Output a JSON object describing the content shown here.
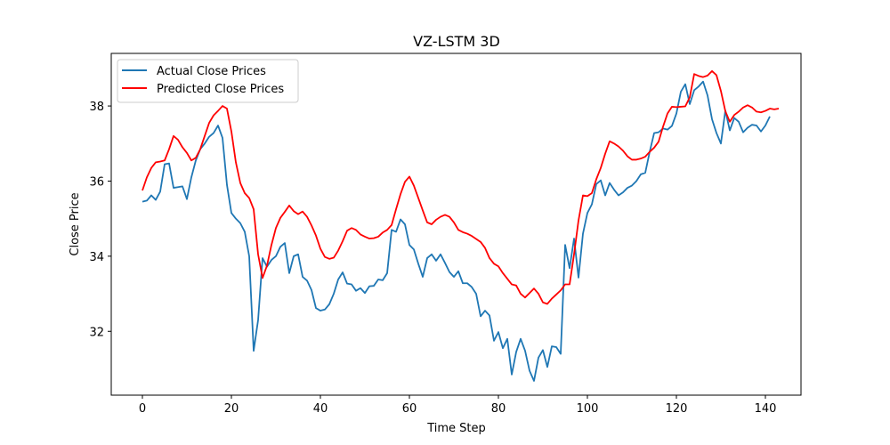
{
  "chart_data": {
    "type": "line",
    "title": "VZ-LSTM 3D",
    "xlabel": "Time Step",
    "ylabel": "Close Price",
    "xlim": [
      -7,
      148
    ],
    "ylim": [
      30.3,
      39.4
    ],
    "xticks": [
      0,
      20,
      40,
      60,
      80,
      100,
      120,
      140
    ],
    "yticks": [
      32,
      34,
      36,
      38
    ],
    "grid": false,
    "legend": "top-left",
    "series": [
      {
        "name": "Actual Close Prices",
        "color": "#1f77b4",
        "values": [
          35.45,
          35.48,
          35.62,
          35.5,
          35.72,
          36.45,
          36.47,
          35.82,
          35.84,
          35.86,
          35.52,
          36.1,
          36.55,
          36.85,
          37.0,
          37.18,
          37.28,
          37.48,
          37.15,
          35.9,
          35.15,
          35.0,
          34.88,
          34.65,
          34.0,
          31.48,
          32.3,
          33.95,
          33.72,
          33.9,
          34.0,
          34.25,
          34.35,
          33.55,
          34.0,
          34.05,
          33.45,
          33.35,
          33.1,
          32.62,
          32.55,
          32.58,
          32.72,
          33.0,
          33.38,
          33.57,
          33.27,
          33.25,
          33.08,
          33.15,
          33.02,
          33.2,
          33.21,
          33.38,
          33.36,
          33.55,
          34.7,
          34.65,
          34.98,
          34.85,
          34.3,
          34.18,
          33.8,
          33.45,
          33.95,
          34.05,
          33.88,
          34.05,
          33.82,
          33.58,
          33.45,
          33.6,
          33.28,
          33.28,
          33.18,
          33.0,
          32.4,
          32.55,
          32.42,
          31.75,
          31.98,
          31.55,
          31.8,
          30.85,
          31.45,
          31.8,
          31.48,
          30.95,
          30.68,
          31.3,
          31.5,
          31.05,
          31.6,
          31.58,
          31.4,
          34.3,
          33.68,
          34.47,
          33.43,
          34.6,
          35.15,
          35.38,
          35.92,
          36.02,
          35.62,
          35.95,
          35.77,
          35.62,
          35.7,
          35.82,
          35.88,
          36.0,
          36.18,
          36.22,
          36.78,
          37.28,
          37.3,
          37.4,
          37.37,
          37.47,
          37.8,
          38.38,
          38.58,
          38.05,
          38.42,
          38.52,
          38.65,
          38.28,
          37.65,
          37.28,
          37.0,
          37.88,
          37.35,
          37.68,
          37.58,
          37.3,
          37.42,
          37.5,
          37.48,
          37.32,
          37.48,
          37.72
        ]
      },
      {
        "name": "Predicted Close Prices",
        "color": "#ff0000",
        "values": [
          35.75,
          36.1,
          36.35,
          36.5,
          36.52,
          36.55,
          36.85,
          37.2,
          37.1,
          36.9,
          36.75,
          36.55,
          36.62,
          36.85,
          37.2,
          37.55,
          37.75,
          37.87,
          38.0,
          37.93,
          37.32,
          36.5,
          35.95,
          35.68,
          35.55,
          35.25,
          34.05,
          33.42,
          33.75,
          34.3,
          34.75,
          35.02,
          35.18,
          35.35,
          35.2,
          35.12,
          35.19,
          35.05,
          34.82,
          34.55,
          34.2,
          33.98,
          33.93,
          33.96,
          34.15,
          34.4,
          34.68,
          34.75,
          34.7,
          34.58,
          34.52,
          34.47,
          34.48,
          34.52,
          34.63,
          34.7,
          34.83,
          35.25,
          35.65,
          35.98,
          36.12,
          35.88,
          35.55,
          35.22,
          34.9,
          34.85,
          34.97,
          35.05,
          35.1,
          35.05,
          34.9,
          34.7,
          34.64,
          34.6,
          34.54,
          34.46,
          34.38,
          34.22,
          33.95,
          33.8,
          33.73,
          33.55,
          33.4,
          33.25,
          33.22,
          33.0,
          32.9,
          33.02,
          33.14,
          33.0,
          32.77,
          32.73,
          32.87,
          32.98,
          33.09,
          33.25,
          33.25,
          34.05,
          34.95,
          35.62,
          35.6,
          35.68,
          36.05,
          36.35,
          36.73,
          37.06,
          37.0,
          36.92,
          36.81,
          36.66,
          36.57,
          36.57,
          36.6,
          36.65,
          36.78,
          36.89,
          37.05,
          37.45,
          37.8,
          37.98,
          37.97,
          37.98,
          37.99,
          38.23,
          38.85,
          38.8,
          38.77,
          38.81,
          38.93,
          38.82,
          38.4,
          37.86,
          37.58,
          37.76,
          37.85,
          37.96,
          38.02,
          37.96,
          37.85,
          37.83,
          37.87,
          37.93,
          37.91,
          37.93
        ]
      }
    ]
  }
}
